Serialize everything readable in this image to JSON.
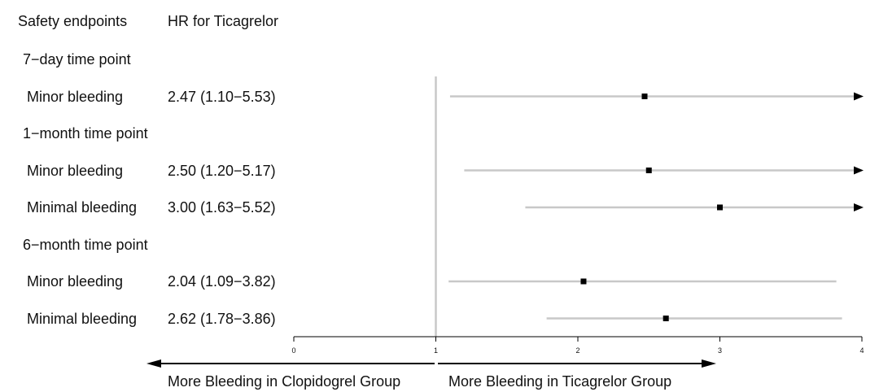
{
  "chart_data": {
    "type": "forest",
    "headers": {
      "endpoint": "Safety endpoints",
      "hr": "HR for Ticagrelor"
    },
    "rows": [
      {
        "kind": "group",
        "label": "7−day time point"
      },
      {
        "kind": "item",
        "label": "Minor bleeding",
        "hr_text": "2.47 (1.10−5.53)",
        "hr": 2.47,
        "lo": 1.1,
        "hi": 5.53
      },
      {
        "kind": "group",
        "label": "1−month time point"
      },
      {
        "kind": "item",
        "label": "Minor bleeding",
        "hr_text": "2.50 (1.20−5.17)",
        "hr": 2.5,
        "lo": 1.2,
        "hi": 5.17
      },
      {
        "kind": "item",
        "label": "Minimal bleeding",
        "hr_text": "3.00 (1.63−5.52)",
        "hr": 3.0,
        "lo": 1.63,
        "hi": 5.52
      },
      {
        "kind": "group",
        "label": "6−month time point"
      },
      {
        "kind": "item",
        "label": "Minor bleeding",
        "hr_text": "2.04 (1.09−3.82)",
        "hr": 2.04,
        "lo": 1.09,
        "hi": 3.82
      },
      {
        "kind": "item",
        "label": "Minimal bleeding",
        "hr_text": "2.62 (1.78−3.86)",
        "hr": 2.62,
        "lo": 1.78,
        "hi": 3.86
      }
    ],
    "xlim": [
      0,
      4
    ],
    "xticks": [
      "0",
      "1",
      "2",
      "3",
      "4"
    ],
    "reference_line": 1,
    "direction_labels": {
      "left": "More Bleeding in Clopidogrel Group",
      "right": "More Bleeding in Ticagrelor Group"
    },
    "colors": {
      "ci_line": "#c8c8c8",
      "point": "#000000",
      "reference": "#c8c8c8",
      "axis": "#000000"
    }
  }
}
